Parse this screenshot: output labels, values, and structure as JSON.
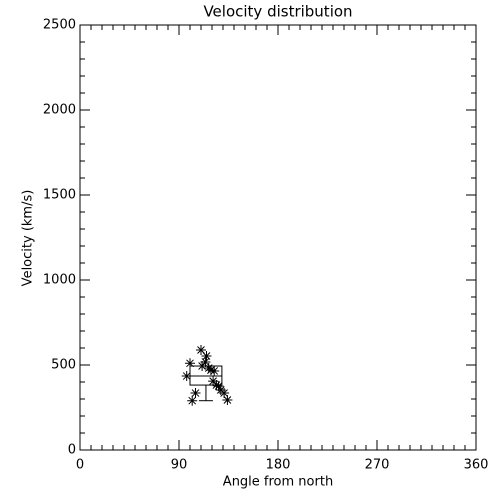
{
  "chart_data": {
    "type": "scatter",
    "title": "Velocity distribution",
    "xlabel": "Angle from north",
    "ylabel": "Velocity (km/s)",
    "x": [
      97,
      100,
      102,
      105,
      110,
      111,
      114,
      115,
      117,
      119,
      121,
      122,
      124,
      126,
      128,
      131,
      134
    ],
    "values": [
      435,
      510,
      290,
      335,
      588,
      494,
      518,
      553,
      482,
      470,
      405,
      465,
      382,
      376,
      353,
      335,
      294
    ],
    "marker": "asterisk",
    "color": "#000000",
    "box": {
      "x_range": [
        100,
        129
      ],
      "q1": 382,
      "median": 435,
      "q3": 494,
      "whisker_low": 290
    },
    "xlim": [
      0,
      360
    ],
    "xticks": [
      0,
      90,
      180,
      270,
      360
    ],
    "ylim": [
      0,
      2500
    ],
    "yticks": [
      0,
      500,
      1000,
      1500,
      2000,
      2500
    ],
    "x_minor": 9,
    "y_minor": 5
  }
}
